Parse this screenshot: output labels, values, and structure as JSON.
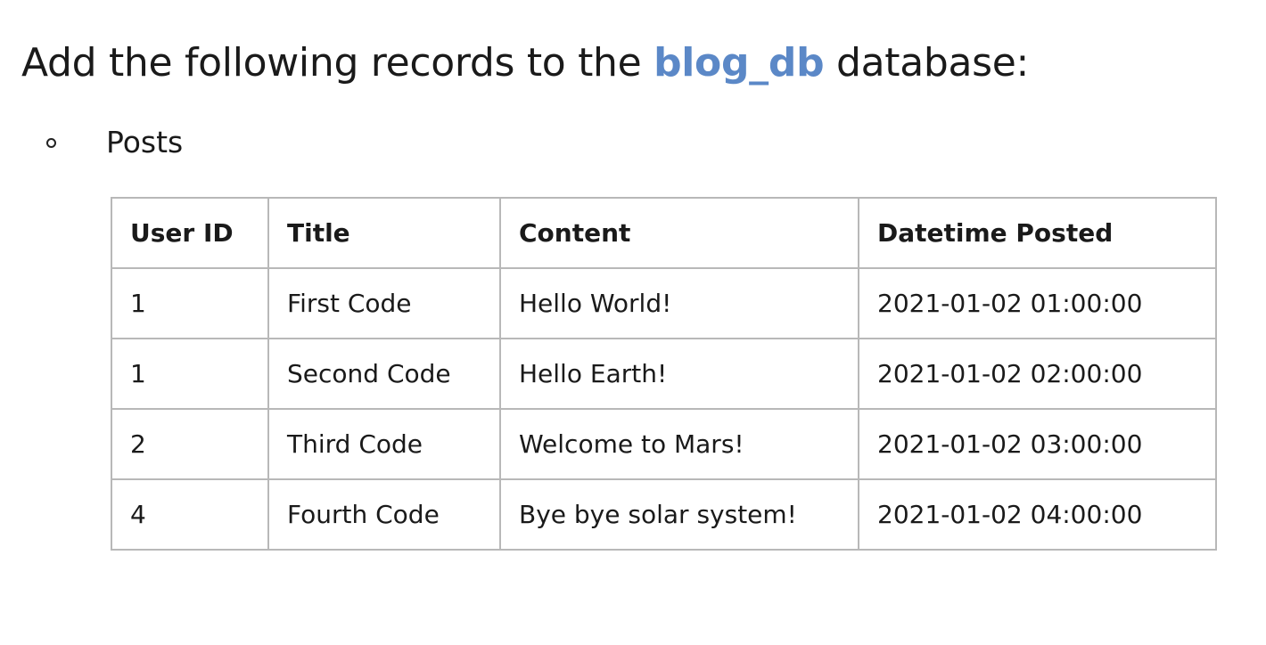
{
  "heading": {
    "prefix": "Add the following records to the ",
    "db_name": "blog_db",
    "suffix": " database:"
  },
  "list": {
    "item_label": "Posts"
  },
  "table": {
    "headers": [
      "User ID",
      "Title",
      "Content",
      "Datetime Posted"
    ],
    "rows": [
      [
        "1",
        "First Code",
        "Hello World!",
        "2021-01-02 01:00:00"
      ],
      [
        "1",
        "Second Code",
        "Hello Earth!",
        "2021-01-02 02:00:00"
      ],
      [
        "2",
        "Third Code",
        "Welcome to Mars!",
        "2021-01-02 03:00:00"
      ],
      [
        "4",
        "Fourth Code",
        "Bye bye solar system!",
        "2021-01-02 04:00:00"
      ]
    ]
  },
  "colors": {
    "accent": "#5b88c7",
    "text": "#1a1a1a",
    "border": "#b8b8b8"
  }
}
